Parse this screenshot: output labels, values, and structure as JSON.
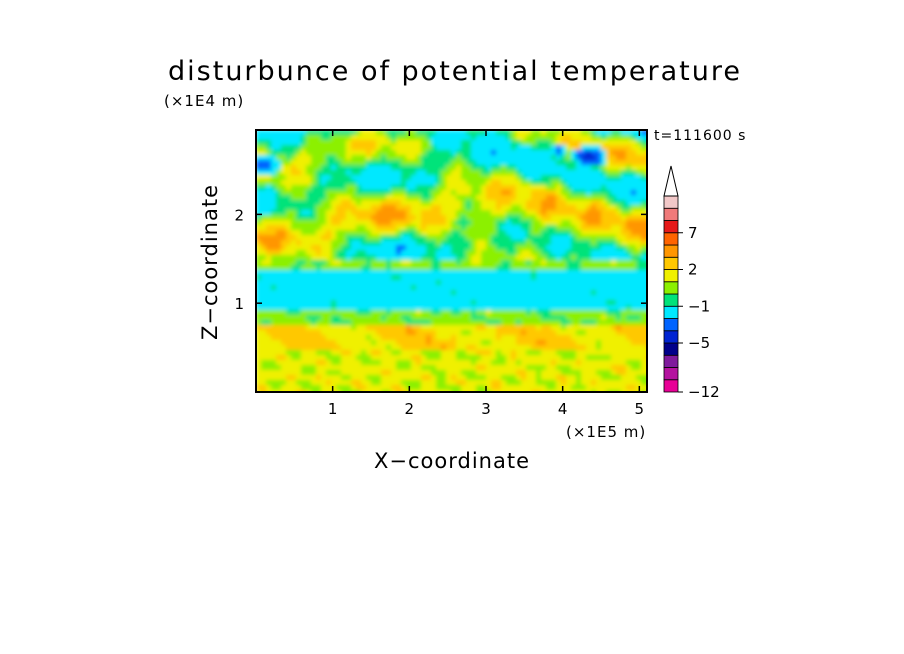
{
  "chart_data": {
    "type": "heatmap",
    "title": "disturbunce of potential temperature",
    "xlabel": "X−coordinate",
    "ylabel": "Z−coordinate",
    "x_scale_label": "(×1E5 m)",
    "y_scale_label": "(×1E4 m)",
    "annotation": "t=111600 s",
    "xlim": [
      0,
      5.1
    ],
    "ylim": [
      0,
      2.95
    ],
    "xticks": [
      1,
      2,
      3,
      4,
      5
    ],
    "yticks": [
      1,
      2
    ],
    "colorbar": {
      "levels": [
        -12,
        -11,
        -9,
        -7,
        -5,
        -4,
        -3,
        -1,
        0,
        1,
        2,
        3,
        5,
        7,
        8,
        9
      ],
      "tick_labels": [
        {
          "value": 7,
          "label": "7"
        },
        {
          "value": 2,
          "label": "2"
        },
        {
          "value": -1,
          "label": "−1"
        },
        {
          "value": -5,
          "label": "−5"
        },
        {
          "value": -12,
          "label": "−12"
        }
      ],
      "colors": [
        "#e80096",
        "#b4129f",
        "#7f1a9c",
        "#00008a",
        "#0024d2",
        "#0064ff",
        "#00e8ff",
        "#00e37a",
        "#8cf000",
        "#f0f000",
        "#ffc800",
        "#ff9600",
        "#ff6400",
        "#e61a1a",
        "#f07a7a",
        "#f2c8c8"
      ],
      "extend_top": true
    },
    "bands": [
      {
        "z_range": [
          0.0,
          0.45
        ],
        "description": "yellow/orange mottled, value ~ +1 to +3"
      },
      {
        "z_range": [
          0.45,
          0.75
        ],
        "description": "yellow with orange patches"
      },
      {
        "z_range": [
          0.75,
          0.95
        ],
        "description": "green, ~0"
      },
      {
        "z_range": [
          0.95,
          1.35
        ],
        "description": "cyan, ~ -1 to -2"
      },
      {
        "z_range": [
          1.35,
          1.5
        ],
        "description": "green, ~0"
      },
      {
        "z_range": [
          1.5,
          2.0
        ],
        "description": "yellow/green wave, ~ +1"
      },
      {
        "z_range": [
          2.0,
          2.6
        ],
        "description": "orange/yellow/cyan wavy, ~ -1 to +3"
      },
      {
        "z_range": [
          2.6,
          2.95
        ],
        "description": "cyan/green with dark-blue patches near x~4.3, ~ -2 to -5"
      }
    ]
  }
}
